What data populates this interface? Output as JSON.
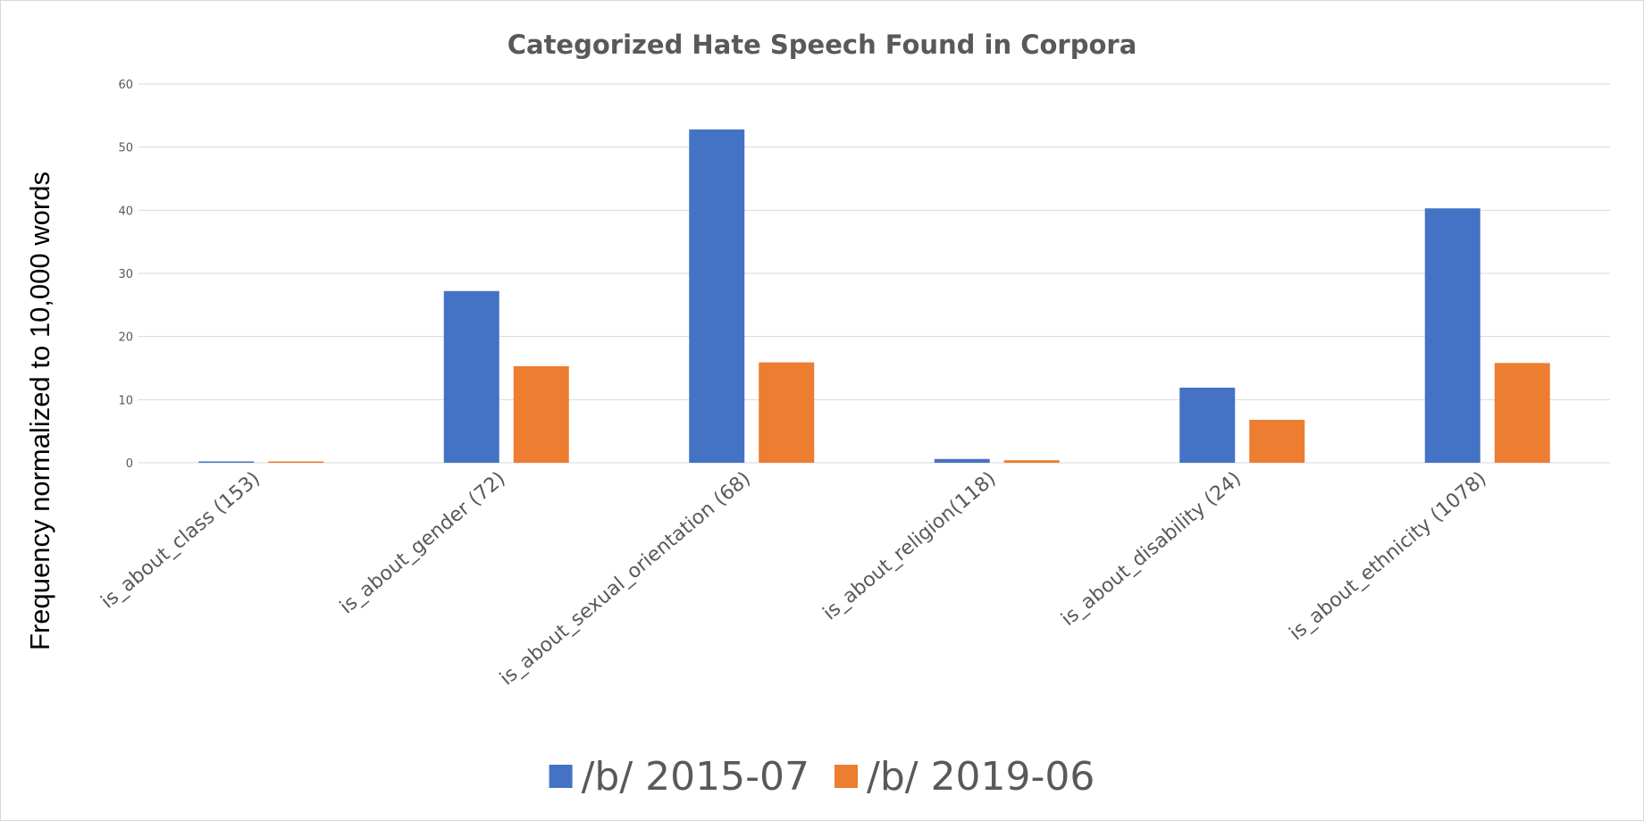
{
  "chart_data": {
    "type": "bar",
    "title": "Categorized Hate Speech Found in Corpora",
    "xlabel": "",
    "ylabel": "Frequency normalized to 10,000 words",
    "ylim": [
      0,
      60
    ],
    "yticks": [
      0,
      10,
      20,
      30,
      40,
      50,
      60
    ],
    "grid": true,
    "legend_position": "bottom",
    "categories": [
      "is_about_class (153)",
      "is_about_gender (72)",
      "is_about_sexual_orientation (68)",
      "is_about_religion(118)",
      "is_about_disability (24)",
      "is_about_ethnicity (1078)"
    ],
    "series": [
      {
        "name": "/b/ 2015-07",
        "color": "#4472C4",
        "values": [
          0.2,
          27.2,
          52.8,
          0.6,
          11.9,
          40.3
        ]
      },
      {
        "name": "/b/ 2019-06",
        "color": "#ED7D31",
        "values": [
          0.1,
          15.3,
          15.9,
          0.4,
          6.8,
          15.8
        ]
      }
    ]
  }
}
